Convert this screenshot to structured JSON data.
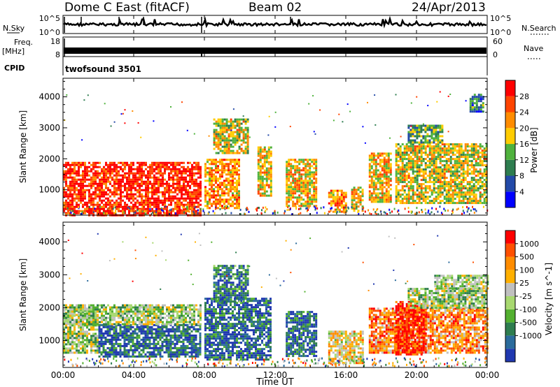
{
  "header": {
    "title": "Dome C East (fitACF)",
    "beam": "Beam 02",
    "date": "24/Apr/2013"
  },
  "top_panels": {
    "nsky_label": "N.Sky",
    "nsky_ticks": [
      "10^5",
      "10^0"
    ],
    "nsearch_label": "N.Search",
    "freq_label_1": "Freq.",
    "freq_label_2": "[MHz]",
    "freq_ticks": [
      "18",
      "8"
    ],
    "nave_ticks": [
      "60",
      "0"
    ],
    "nave_label": "Nave",
    "cpid_label": "CPID",
    "cpid_value": "twofsound 3501"
  },
  "x_axis": {
    "label": "Time UT",
    "ticks": [
      "00:00",
      "04:00",
      "08:00",
      "12:00",
      "16:00",
      "20:00",
      "00:00"
    ]
  },
  "chart_data": [
    {
      "type": "heatmap",
      "panel": "power",
      "ylabel": "Slant Range [km]",
      "yticks": [
        1000,
        2000,
        3000,
        4000
      ],
      "ylim": [
        180,
        4600
      ],
      "xlim": [
        0,
        24
      ],
      "colorbar": {
        "label": "Power [dB]",
        "tick_labels": [
          "28",
          "24",
          "20",
          "16",
          "12",
          "8",
          "4"
        ],
        "colors": [
          "#0000ff",
          "#234aa8",
          "#2e7d4f",
          "#4fb23d",
          "#ffcc00",
          "#ff8c00",
          "#ff4400",
          "#ff0000"
        ]
      },
      "echo_regions": [
        {
          "t0": 0.0,
          "t1": 7.8,
          "r0": 200,
          "r1": 1900,
          "level": 0.9
        },
        {
          "t0": 8.0,
          "t1": 10.0,
          "r0": 400,
          "r1": 2000,
          "level": 0.7
        },
        {
          "t0": 8.5,
          "t1": 10.5,
          "r0": 2200,
          "r1": 3300,
          "level": 0.55
        },
        {
          "t0": 11.0,
          "t1": 11.8,
          "r0": 800,
          "r1": 2400,
          "level": 0.6
        },
        {
          "t0": 12.6,
          "t1": 14.3,
          "r0": 500,
          "r1": 2000,
          "level": 0.6
        },
        {
          "t0": 15.0,
          "t1": 16.0,
          "r0": 300,
          "r1": 1000,
          "level": 0.7
        },
        {
          "t0": 16.3,
          "t1": 17.0,
          "r0": 300,
          "r1": 1100,
          "level": 0.6
        },
        {
          "t0": 17.3,
          "t1": 18.6,
          "r0": 600,
          "r1": 2200,
          "level": 0.6
        },
        {
          "t0": 18.8,
          "t1": 24.0,
          "r0": 600,
          "r1": 2500,
          "level": 0.55
        },
        {
          "t0": 19.5,
          "t1": 21.5,
          "r0": 2500,
          "r1": 3100,
          "level": 0.4
        },
        {
          "t0": 23.0,
          "t1": 23.8,
          "r0": 3500,
          "r1": 4100,
          "level": 0.3
        }
      ]
    },
    {
      "type": "heatmap",
      "panel": "velocity",
      "ylabel": "Slant Range [km]",
      "yticks": [
        1000,
        2000,
        3000,
        4000
      ],
      "ylim": [
        180,
        4600
      ],
      "xlim": [
        0,
        24
      ],
      "colorbar": {
        "label": "Velocity [m s^-1]",
        "tick_labels": [
          "1000",
          "500",
          "100",
          "25",
          "-25",
          "-100",
          "-500",
          "-1000"
        ],
        "colors": [
          "#2038b0",
          "#2b6b9c",
          "#2e7d4f",
          "#53b030",
          "#a8d870",
          "#c0c0c0",
          "#ffb000",
          "#ff8c00",
          "#ff5000",
          "#ff0000"
        ]
      },
      "echo_regions": [
        {
          "t0": 0.0,
          "t1": 2.0,
          "r0": 600,
          "r1": 2000,
          "level": 0.45
        },
        {
          "t0": 2.0,
          "t1": 7.8,
          "r0": 500,
          "r1": 1500,
          "level": 0.15
        },
        {
          "t0": 0.0,
          "t1": 7.8,
          "r0": 1500,
          "r1": 2100,
          "level": 0.45
        },
        {
          "t0": 8.0,
          "t1": 11.8,
          "r0": 400,
          "r1": 2300,
          "level": 0.15
        },
        {
          "t0": 8.5,
          "t1": 10.5,
          "r0": 2200,
          "r1": 3300,
          "level": 0.2
        },
        {
          "t0": 12.6,
          "t1": 14.3,
          "r0": 500,
          "r1": 1900,
          "level": 0.15
        },
        {
          "t0": 15.0,
          "t1": 17.0,
          "r0": 300,
          "r1": 1300,
          "level": 0.6
        },
        {
          "t0": 17.3,
          "t1": 24.0,
          "r0": 600,
          "r1": 2000,
          "level": 0.75
        },
        {
          "t0": 18.8,
          "t1": 20.5,
          "r0": 600,
          "r1": 2200,
          "level": 0.95
        },
        {
          "t0": 19.5,
          "t1": 24.0,
          "r0": 2000,
          "r1": 2600,
          "level": 0.45
        },
        {
          "t0": 21.0,
          "t1": 24.0,
          "r0": 2600,
          "r1": 3000,
          "level": 0.45
        }
      ]
    }
  ]
}
